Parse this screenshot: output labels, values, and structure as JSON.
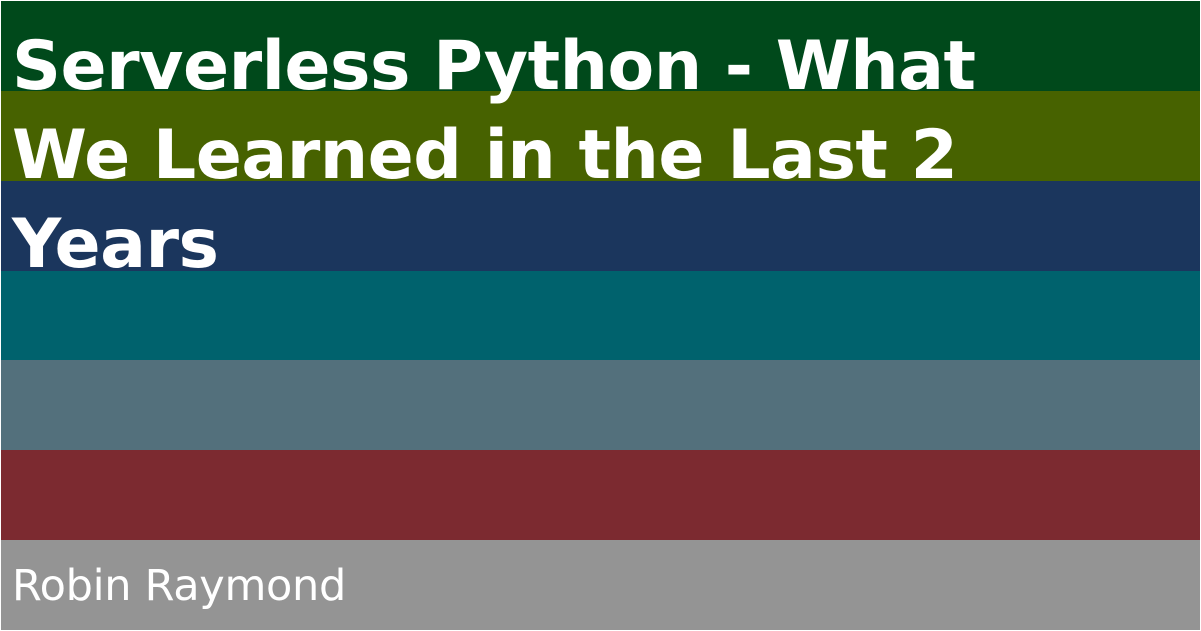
{
  "title": "Serverless Python - What We Learned in the Last 2 Years",
  "author": "Robin Raymond",
  "stripes": [
    {
      "name": "stripe-dark-green",
      "color": "#00491b"
    },
    {
      "name": "stripe-olive",
      "color": "#476200"
    },
    {
      "name": "stripe-navy",
      "color": "#1b365d"
    },
    {
      "name": "stripe-teal",
      "color": "#00626d"
    },
    {
      "name": "stripe-slate",
      "color": "#53707c"
    },
    {
      "name": "stripe-red",
      "color": "#7c2a30"
    },
    {
      "name": "stripe-gray",
      "color": "#949494"
    }
  ]
}
